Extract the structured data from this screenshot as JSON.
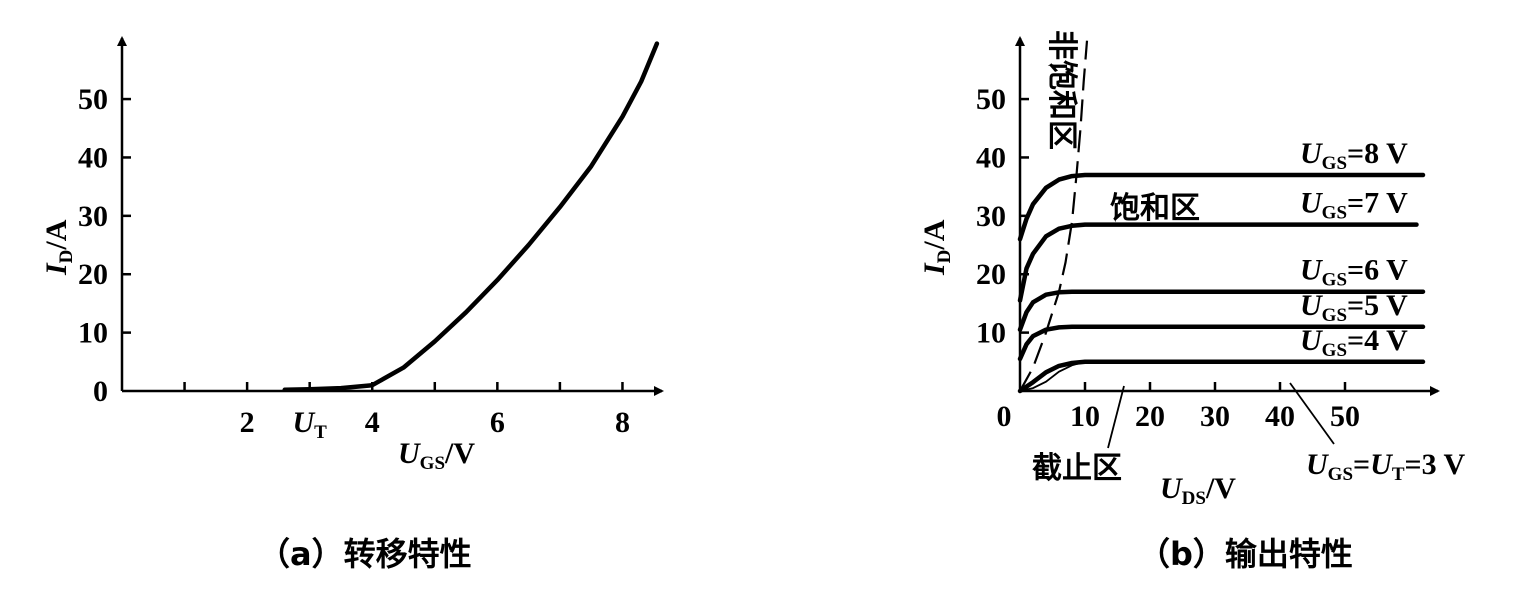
{
  "chart_data": [
    {
      "type": "line",
      "caption": "（a）转移特性",
      "xlabel": {
        "var": "U",
        "sub": "GS",
        "unit": "/V"
      },
      "ylabel": {
        "var": "I",
        "sub": "D",
        "unit": "/A"
      },
      "xlim": [
        0,
        8.6
      ],
      "ylim": [
        0,
        62
      ],
      "xticks": [
        1,
        2,
        3,
        4,
        5,
        6,
        7,
        8
      ],
      "xtick_labels": [
        {
          "x": 2,
          "text": "2"
        },
        {
          "x": 4,
          "text": "4"
        },
        {
          "x": 6,
          "text": "6"
        },
        {
          "x": 8,
          "text": "8"
        }
      ],
      "ut_label": {
        "x": 3,
        "var": "U",
        "sub": "T"
      },
      "yticks": [
        0,
        10,
        20,
        30,
        40,
        50
      ],
      "series": [
        {
          "x": [
            2.6,
            3.0,
            3.5,
            4.0,
            4.5,
            5.0,
            5.5,
            6.0,
            6.5,
            7.0,
            7.5,
            8.0,
            8.3,
            8.55
          ],
          "values": [
            0.2,
            0.3,
            0.5,
            1.0,
            4.0,
            8.5,
            13.5,
            19.0,
            25.0,
            31.5,
            38.5,
            47.0,
            53.0,
            59.5
          ]
        }
      ]
    },
    {
      "type": "line",
      "caption": "（b）输出特性",
      "xlabel": {
        "var": "U",
        "sub": "DS",
        "unit": "/V"
      },
      "ylabel": {
        "var": "I",
        "sub": "D",
        "unit": "/A"
      },
      "xlim": [
        0,
        64
      ],
      "ylim": [
        0,
        62
      ],
      "origin_label": "0",
      "xticks": [
        10,
        20,
        30,
        40,
        50
      ],
      "yticks": [
        10,
        20,
        30,
        40,
        50
      ],
      "series": [
        {
          "name": "8 V",
          "label": {
            "var": "U",
            "sub": "GS",
            "text": "=8  V"
          },
          "x": [
            0,
            1,
            2,
            4,
            6,
            8,
            10,
            13,
            62
          ],
          "values": [
            26,
            29.5,
            32,
            34.8,
            36.2,
            36.8,
            37.0,
            37.0,
            37.0
          ]
        },
        {
          "name": "7 V",
          "label": {
            "var": "U",
            "sub": "GS",
            "text": "=7  V"
          },
          "x": [
            0,
            1,
            2,
            4,
            6,
            8,
            10,
            13,
            61
          ],
          "values": [
            15.5,
            21,
            23.5,
            26.5,
            27.8,
            28.3,
            28.5,
            28.5,
            28.5
          ]
        },
        {
          "name": "6 V",
          "label": {
            "var": "U",
            "sub": "GS",
            "text": "=6  V"
          },
          "x": [
            0,
            1,
            2,
            4,
            6,
            8,
            10,
            62
          ],
          "values": [
            10.5,
            13.5,
            15.2,
            16.5,
            16.9,
            17.0,
            17.0,
            17.0
          ]
        },
        {
          "name": "5 V",
          "label": {
            "var": "U",
            "sub": "GS",
            "text": "=5  V"
          },
          "x": [
            0,
            1,
            2,
            4,
            6,
            8,
            10,
            62
          ],
          "values": [
            5.5,
            8,
            9.4,
            10.5,
            10.9,
            11.0,
            11.0,
            11.0
          ]
        },
        {
          "name": "4 V",
          "label": {
            "var": "U",
            "sub": "GS",
            "text": "=4  V"
          },
          "x": [
            0,
            2,
            4,
            6,
            8,
            10,
            12,
            62
          ],
          "values": [
            0,
            1.5,
            3.2,
            4.3,
            4.8,
            5.0,
            5.0,
            5.0
          ]
        }
      ],
      "boundary": {
        "x": [
          0,
          2,
          4,
          6,
          7,
          8,
          8.7,
          9.3,
          9.8,
          10.3
        ],
        "values": [
          0,
          4,
          10,
          17,
          22,
          29,
          37,
          45,
          53,
          60
        ]
      },
      "cutoff_line": {
        "x": [
          0,
          2,
          4,
          6,
          8,
          10,
          62
        ],
        "values": [
          0,
          0.5,
          1.6,
          3.3,
          4.4,
          5.0,
          5.0
        ]
      },
      "regions": {
        "nonsat": "非饱和区",
        "sat": "饱和区",
        "cutoff": "截止区"
      },
      "ut_note": {
        "var1": "U",
        "sub1": "GS",
        "eq": "=",
        "var2": "U",
        "sub2": "T",
        "text": "=3  V"
      }
    }
  ]
}
